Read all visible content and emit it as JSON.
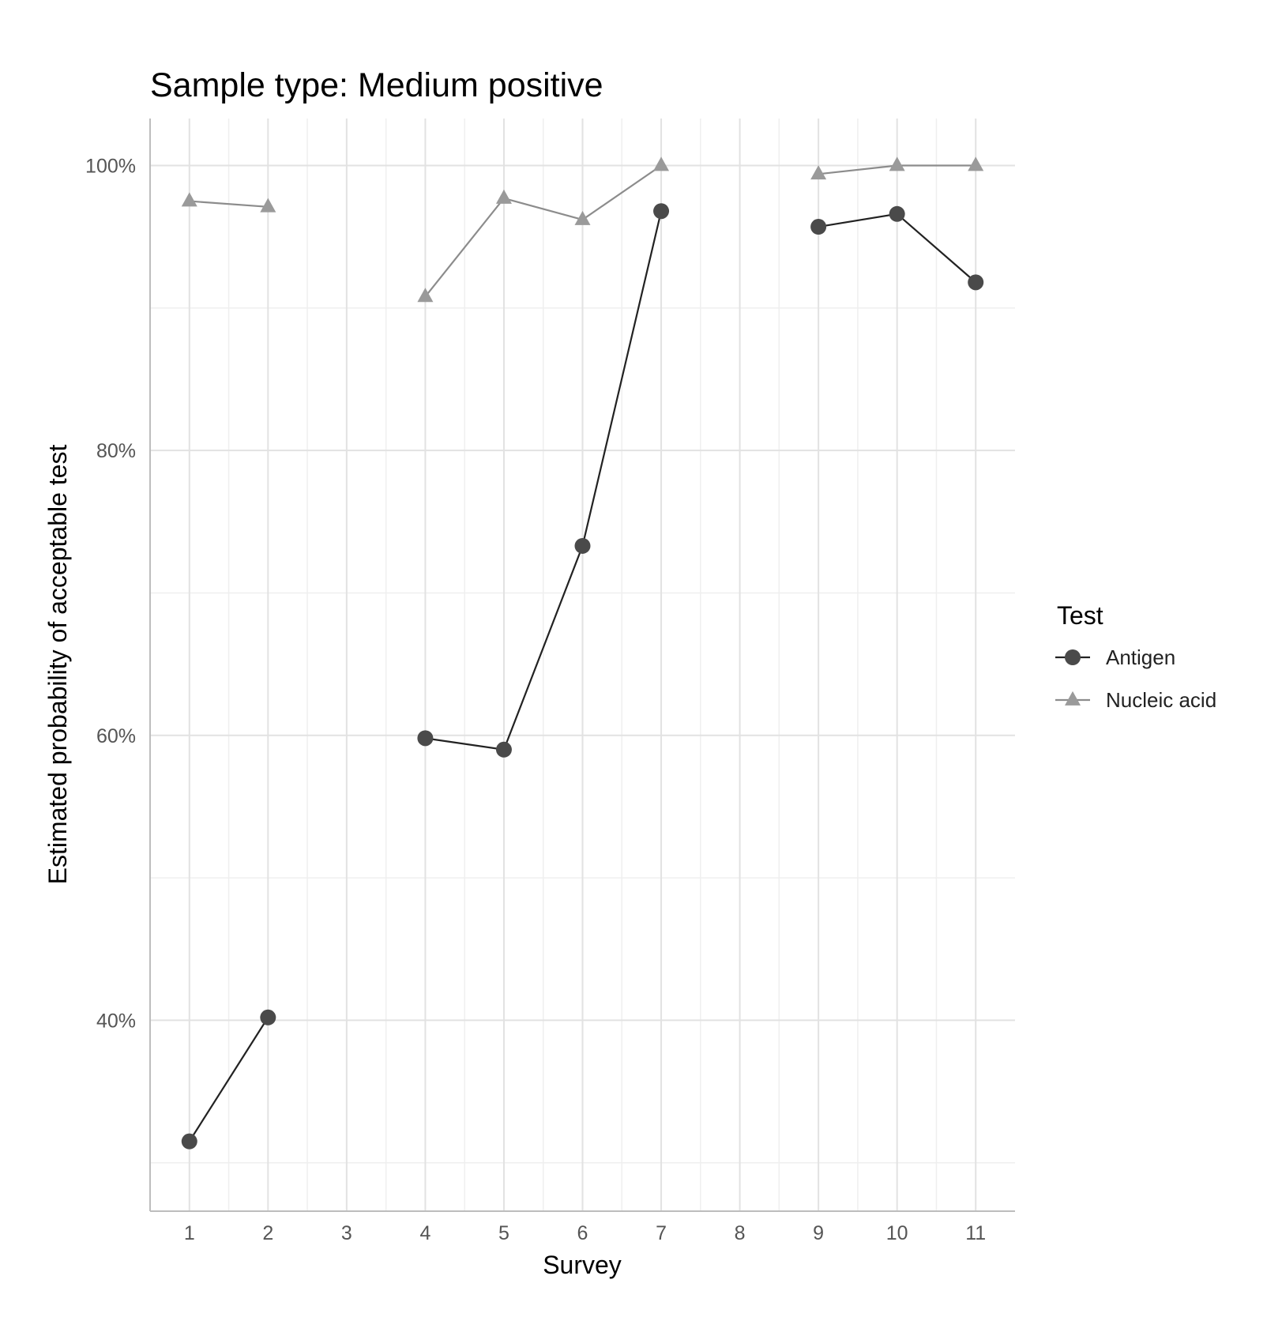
{
  "chart_data": {
    "type": "line",
    "title": "Sample type: Medium positive",
    "xlabel": "Survey",
    "ylabel": "Estimated probability of acceptable test",
    "categories": [
      1,
      2,
      3,
      4,
      5,
      6,
      7,
      8,
      9,
      10,
      11
    ],
    "x_tick_labels": [
      "1",
      "2",
      "3",
      "4",
      "5",
      "6",
      "7",
      "8",
      "9",
      "10",
      "11"
    ],
    "y_ticks": [
      40,
      60,
      80,
      100
    ],
    "y_tick_labels": [
      "40%",
      "60%",
      "80%",
      "100%"
    ],
    "ylim": [
      26.6,
      103.3
    ],
    "xlim": [
      0.5,
      11.5
    ],
    "grid": true,
    "legend_title": "Test",
    "legend_position": "right",
    "series": [
      {
        "name": "Antigen",
        "marker": "circle",
        "color": "#4a4a4a",
        "line_color": "#222222",
        "values": [
          31.5,
          40.2,
          null,
          59.8,
          59.0,
          73.3,
          96.8,
          null,
          95.7,
          96.6,
          91.8
        ]
      },
      {
        "name": "Nucleic acid",
        "marker": "triangle",
        "color": "#9a9a9a",
        "line_color": "#8c8c8c",
        "values": [
          97.5,
          97.1,
          null,
          90.8,
          97.7,
          96.2,
          100.0,
          null,
          99.4,
          100.0,
          100.0
        ]
      }
    ]
  }
}
